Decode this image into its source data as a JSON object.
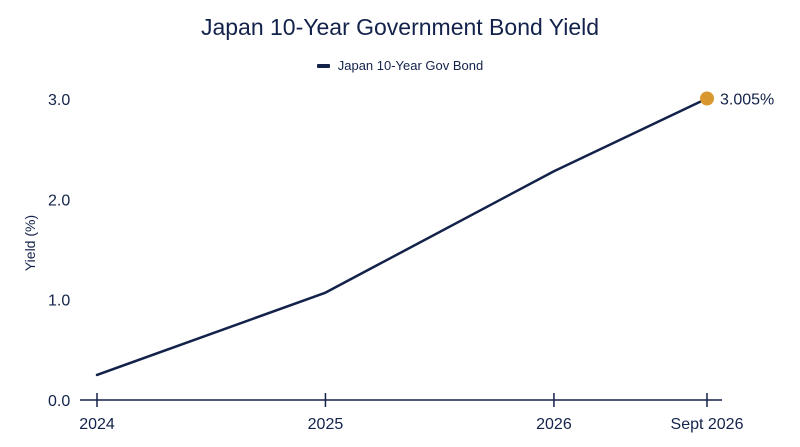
{
  "chart_data": {
    "type": "line",
    "title": "Japan 10-Year Government Bond Yield",
    "xlabel": "",
    "ylabel": "Yield (%)",
    "x": [
      2024.0,
      2025.0,
      2026.0,
      2026.67
    ],
    "x_tick_values": [
      2024.0,
      2025.0,
      2026.0,
      2026.67
    ],
    "x_tick_labels": [
      "2024",
      "2025",
      "2026",
      "Sept 2026"
    ],
    "xlim": [
      2024.0,
      2026.67
    ],
    "ylim": [
      0,
      3.0
    ],
    "y_ticks": [
      0.0,
      1.0,
      2.0,
      3.0
    ],
    "y_tick_labels": [
      "0.0",
      "1.0",
      "2.0",
      "3.0"
    ],
    "series": [
      {
        "name": "Japan 10-Year Gov Bond",
        "values": [
          0.25,
          1.07,
          2.28,
          3.005
        ]
      }
    ],
    "annotations": [
      {
        "x": 2026.67,
        "y": 3.005,
        "text": "3.005%"
      }
    ],
    "grid": false,
    "legend_position": "top-center",
    "colors": {
      "line": "#13224a",
      "highlight": "#d9982f"
    }
  }
}
